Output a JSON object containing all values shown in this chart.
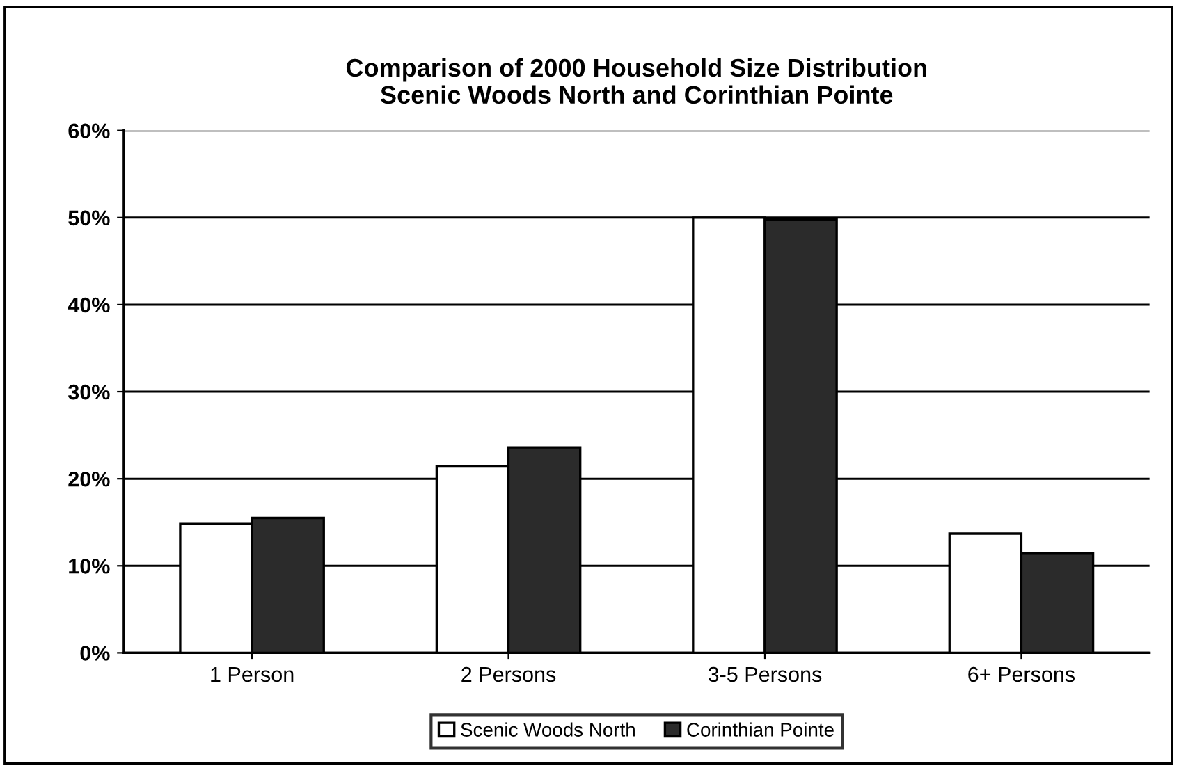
{
  "chart_data": {
    "type": "bar",
    "title": "Comparison of 2000 Household Size Distribution\nScenic Woods North and Corinthian Pointe",
    "categories": [
      "1 Person",
      "2 Persons",
      "3-5 Persons",
      "6+ Persons"
    ],
    "series": [
      {
        "name": "Scenic Woods North",
        "color": "#ffffff",
        "values": [
          14.8,
          21.4,
          50.0,
          13.7
        ]
      },
      {
        "name": "Corinthian Pointe",
        "color": "#2b2b2b",
        "values": [
          15.5,
          23.6,
          49.8,
          11.4
        ]
      }
    ],
    "ylim": [
      0,
      60
    ],
    "yticks": [
      {
        "value": 0,
        "label": "0%"
      },
      {
        "value": 10,
        "label": "10%"
      },
      {
        "value": 20,
        "label": "20%"
      },
      {
        "value": 30,
        "label": "30%"
      },
      {
        "value": 40,
        "label": "40%"
      },
      {
        "value": 50,
        "label": "50%"
      },
      {
        "value": 60,
        "label": "60%"
      }
    ],
    "grid": "y",
    "legend": "bottom"
  }
}
